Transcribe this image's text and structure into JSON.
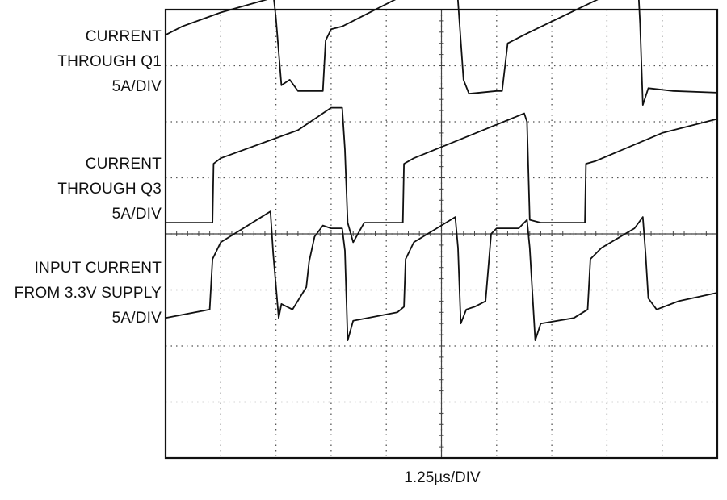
{
  "chart_data": {
    "type": "line",
    "title": "",
    "xlabel": "1.25µs/DIV",
    "grid": true,
    "divisions": {
      "x": 10,
      "y": 8
    },
    "series": [
      {
        "label_lines": [
          "CURRENT",
          "THROUGH Q1",
          "5A/DIV"
        ],
        "points": [
          [
            0,
            1.45
          ],
          [
            0.3,
            1.6
          ],
          [
            1.0,
            1.85
          ],
          [
            1.9,
            2.1
          ],
          [
            1.95,
            2.2
          ],
          [
            2.0,
            1.75
          ],
          [
            2.1,
            0.55
          ],
          [
            2.25,
            0.65
          ],
          [
            2.4,
            0.45
          ],
          [
            2.75,
            0.45
          ],
          [
            2.85,
            0.45
          ],
          [
            2.9,
            1.35
          ],
          [
            3.0,
            1.55
          ],
          [
            3.2,
            1.6
          ],
          [
            5.0,
            2.5
          ],
          [
            5.25,
            2.65
          ],
          [
            5.3,
            2.05
          ],
          [
            5.4,
            0.65
          ],
          [
            5.5,
            0.4
          ],
          [
            6.0,
            0.45
          ],
          [
            6.1,
            0.45
          ],
          [
            6.2,
            1.3
          ],
          [
            6.4,
            1.4
          ],
          [
            6.6,
            1.5
          ],
          [
            8.4,
            2.35
          ],
          [
            8.55,
            2.6
          ],
          [
            8.6,
            1.65
          ],
          [
            8.65,
            0.2
          ],
          [
            8.75,
            0.5
          ],
          [
            9.2,
            0.45
          ],
          [
            10.0,
            0.42
          ]
        ]
      },
      {
        "label_lines": [
          "CURRENT",
          "THROUGH Q3",
          "5A/DIV"
        ],
        "points": [
          [
            0,
            0
          ],
          [
            0.85,
            0
          ],
          [
            0.87,
            1.05
          ],
          [
            1.0,
            1.15
          ],
          [
            2.4,
            1.65
          ],
          [
            3.0,
            2.05
          ],
          [
            3.2,
            2.05
          ],
          [
            3.25,
            1.3
          ],
          [
            3.3,
            0
          ],
          [
            3.4,
            -0.35
          ],
          [
            3.6,
            0
          ],
          [
            4.0,
            0
          ],
          [
            4.3,
            0
          ],
          [
            4.32,
            1.05
          ],
          [
            4.5,
            1.15
          ],
          [
            5.5,
            1.55
          ],
          [
            6.5,
            1.95
          ],
          [
            6.55,
            1.8
          ],
          [
            6.6,
            0.05
          ],
          [
            6.8,
            0
          ],
          [
            7.4,
            0
          ],
          [
            7.6,
            0
          ],
          [
            7.62,
            1.05
          ],
          [
            7.8,
            1.1
          ],
          [
            9.0,
            1.6
          ],
          [
            10.0,
            1.85
          ]
        ]
      },
      {
        "label_lines": [
          "INPUT CURRENT",
          "FROM 3.3V SUPPLY",
          "5A/DIV"
        ],
        "points": [
          [
            0,
            0.15
          ],
          [
            0.8,
            0.3
          ],
          [
            0.85,
            1.2
          ],
          [
            1.0,
            1.5
          ],
          [
            1.9,
            2.05
          ],
          [
            1.95,
            1.3
          ],
          [
            2.05,
            0.15
          ],
          [
            2.1,
            0.4
          ],
          [
            2.3,
            0.3
          ],
          [
            2.55,
            0.7
          ],
          [
            2.6,
            1.15
          ],
          [
            2.7,
            1.6
          ],
          [
            2.85,
            1.8
          ],
          [
            3.0,
            1.75
          ],
          [
            3.2,
            1.75
          ],
          [
            3.25,
            1.35
          ],
          [
            3.3,
            -0.25
          ],
          [
            3.4,
            0.1
          ],
          [
            4.2,
            0.25
          ],
          [
            4.32,
            0.35
          ],
          [
            4.35,
            1.2
          ],
          [
            4.5,
            1.5
          ],
          [
            5.25,
            1.95
          ],
          [
            5.3,
            1.4
          ],
          [
            5.35,
            0.05
          ],
          [
            5.45,
            0.3
          ],
          [
            5.6,
            0.35
          ],
          [
            5.8,
            0.45
          ],
          [
            5.9,
            1.65
          ],
          [
            6.0,
            1.75
          ],
          [
            6.4,
            1.75
          ],
          [
            6.55,
            1.9
          ],
          [
            6.6,
            1.4
          ],
          [
            6.7,
            -0.25
          ],
          [
            6.8,
            0.05
          ],
          [
            7.4,
            0.15
          ],
          [
            7.65,
            0.3
          ],
          [
            7.7,
            1.2
          ],
          [
            7.9,
            1.4
          ],
          [
            8.5,
            1.75
          ],
          [
            8.65,
            1.95
          ],
          [
            8.7,
            1.3
          ],
          [
            8.75,
            0.5
          ],
          [
            8.9,
            0.3
          ],
          [
            9.3,
            0.45
          ],
          [
            10.0,
            0.6
          ]
        ]
      }
    ]
  }
}
